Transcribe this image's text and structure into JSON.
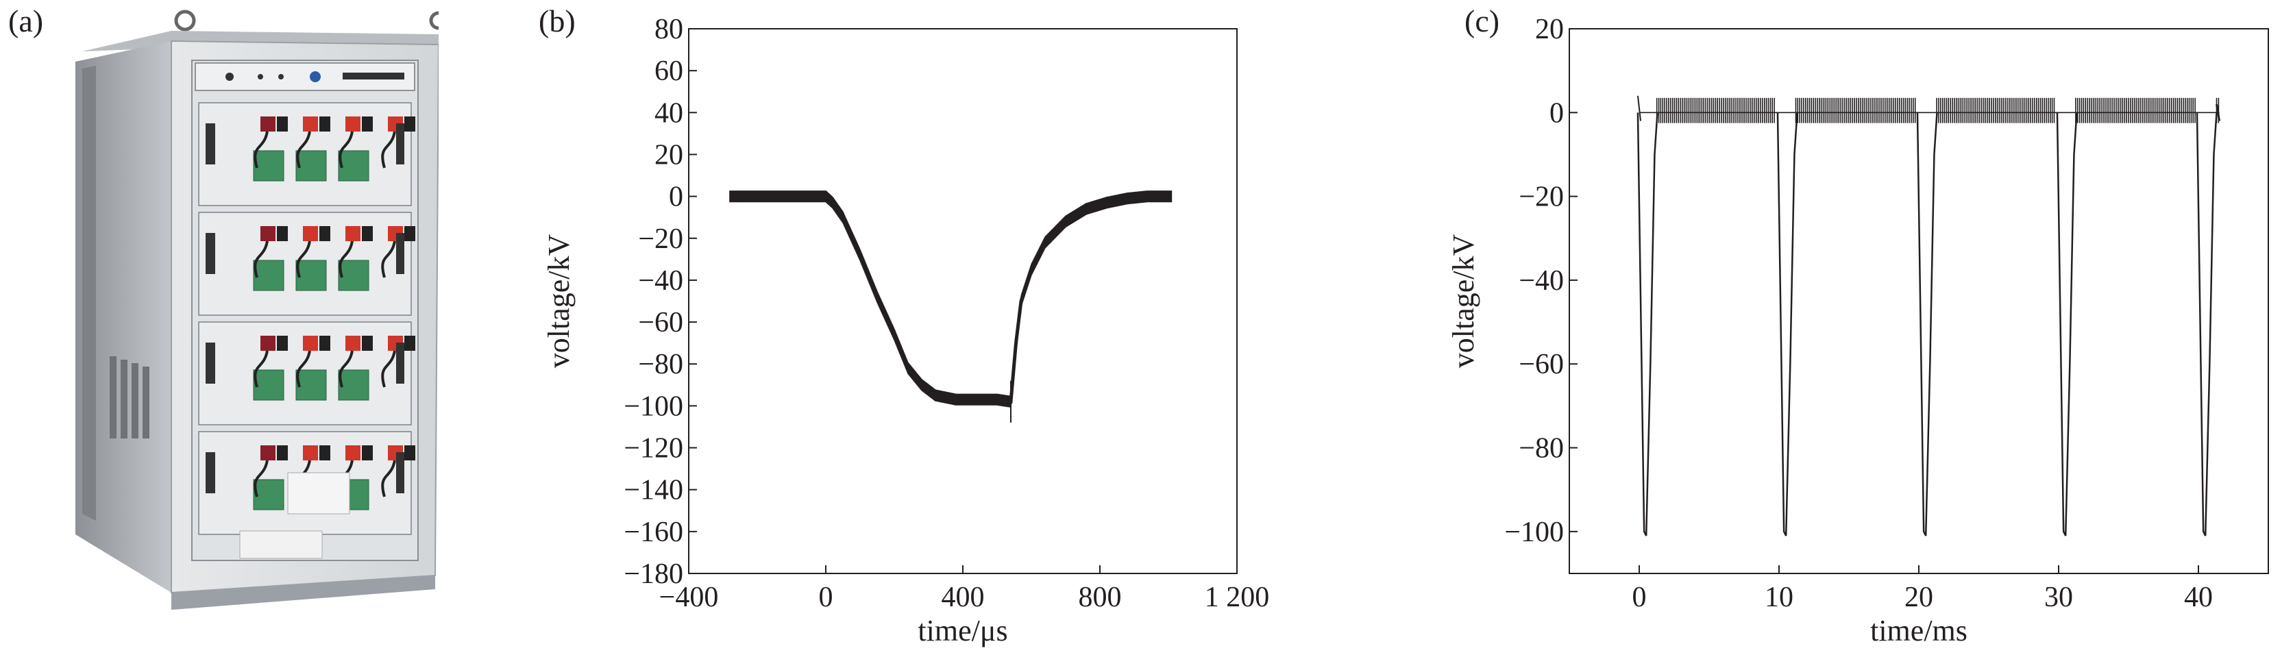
{
  "panels": {
    "a": {
      "label": "(a)"
    },
    "b": {
      "label": "(b)"
    },
    "c": {
      "label": "(c)"
    }
  },
  "chart_data": [
    {
      "type": "line",
      "xlabel": "time/μs",
      "ylabel": "voltage/kV",
      "xlim": [
        -400,
        1200
      ],
      "ylim": [
        -180,
        80
      ],
      "x_ticks": [
        -400,
        0,
        400,
        800,
        1200
      ],
      "x_tick_labels": [
        "−400",
        "0",
        "400",
        "800",
        "1 200"
      ],
      "y_ticks": [
        80,
        60,
        40,
        20,
        0,
        -20,
        -40,
        -60,
        -80,
        -100,
        -120,
        -140,
        -160,
        -180
      ],
      "y_tick_labels": [
        "80",
        "60",
        "40",
        "20",
        "0",
        "−20",
        "−40",
        "−60",
        "−80",
        "−100",
        "−120",
        "−140",
        "−160",
        "−180"
      ],
      "grid": false,
      "series": [
        {
          "color": "#231f20",
          "x": [
            -280,
            -200,
            -100,
            0,
            20,
            50,
            100,
            150,
            200,
            240,
            280,
            320,
            380,
            440,
            500,
            540,
            555,
            570,
            600,
            640,
            700,
            760,
            820,
            880,
            940,
            1010
          ],
          "y": [
            0,
            0,
            0,
            0,
            -3,
            -10,
            -28,
            -48,
            -66,
            -82,
            -90,
            -95,
            -97,
            -97,
            -97,
            -98,
            -70,
            -50,
            -35,
            -22,
            -12,
            -6,
            -3,
            -1,
            0,
            0
          ]
        }
      ]
    },
    {
      "type": "line",
      "xlabel": "time/ms",
      "ylabel": "voltage/kV",
      "xlim": [
        -5,
        45
      ],
      "ylim": [
        -110,
        20
      ],
      "x_ticks": [
        0,
        10,
        20,
        30,
        40
      ],
      "x_tick_labels": [
        "0",
        "10",
        "20",
        "30",
        "40"
      ],
      "y_ticks": [
        20,
        0,
        -20,
        -40,
        -60,
        -80,
        -100
      ],
      "y_tick_labels": [
        "20",
        "0",
        "−20",
        "−40",
        "−60",
        "−80",
        "−100"
      ],
      "grid": false,
      "series": [
        {
          "color": "#231f20",
          "pulse_times": [
            0.5,
            10.5,
            20.5,
            30.5,
            40.5
          ],
          "pulse_min": -100,
          "baseline": 0,
          "x_start": 0,
          "x_end": 41.5
        }
      ]
    }
  ]
}
